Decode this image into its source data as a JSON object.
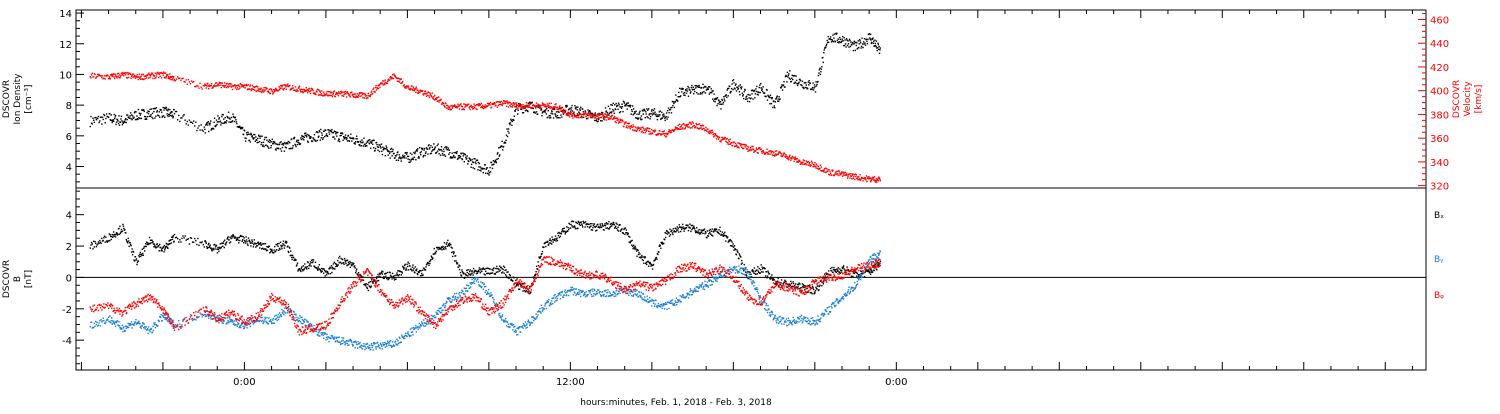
{
  "chart_data": [
    {
      "type": "scatter",
      "panel": "top",
      "xlabel": "hours:minutes, Feb.  1, 2018 - Feb.  3, 2018",
      "x_ticks": [
        "0:00",
        "12:00",
        "0:00"
      ],
      "ylabel_left": [
        "DSCOVR",
        "Ion Density",
        "[cm⁻³]"
      ],
      "ylabel_right": [
        "DSCOVR",
        "Velocity",
        "[km/s]"
      ],
      "ylim_left": [
        2.6,
        14.2
      ],
      "ylim_right": [
        318,
        468
      ],
      "yticks_left": [
        "4",
        "6",
        "8",
        "10",
        "12",
        "14"
      ],
      "yticks_right": [
        "320",
        "340",
        "360",
        "380",
        "400",
        "420",
        "440",
        "460"
      ],
      "colors": {
        "density": "#000000",
        "velocity": "#ff0000"
      },
      "series": [
        {
          "axis": "left",
          "color": "#000000",
          "x_hours": [
            -5.7,
            -5,
            -4.5,
            -4,
            -3.5,
            -3,
            -2.6,
            -1.5,
            -1,
            -0.5,
            0,
            0.5,
            1,
            1.5,
            2,
            2.5,
            3,
            3.5,
            4,
            4.5,
            5,
            5.5,
            6,
            6.5,
            7,
            7.5,
            8,
            8.5,
            9,
            9.5,
            10,
            10.5,
            11,
            11.5,
            12,
            12.5,
            13,
            13.5,
            14,
            14.5,
            15,
            15.5,
            16,
            16.5,
            17,
            17.5,
            18,
            18.5,
            19,
            19.5,
            20,
            20.5,
            21,
            21.5,
            22,
            22.5,
            23,
            23.4
          ],
          "y": [
            7.0,
            7.2,
            7.0,
            7.4,
            7.5,
            7.6,
            7.4,
            6.5,
            7.0,
            7.3,
            6.0,
            5.8,
            5.5,
            5.3,
            5.8,
            6.0,
            6.2,
            6.0,
            5.8,
            5.6,
            5.2,
            4.8,
            4.6,
            5.0,
            5.2,
            5.0,
            4.6,
            4.2,
            3.8,
            5.5,
            7.8,
            8.0,
            7.6,
            7.5,
            7.8,
            7.5,
            7.2,
            7.8,
            8.0,
            7.4,
            7.5,
            7.3,
            8.8,
            9.0,
            9.2,
            8.0,
            9.5,
            8.5,
            9.2,
            8.0,
            10.0,
            9.5,
            9.2,
            12.5,
            12.3,
            11.8,
            12.5,
            11.5
          ]
        },
        {
          "axis": "right",
          "color": "#ff0000",
          "x_hours": [
            -5.7,
            -5,
            -4.5,
            -4,
            -3.5,
            -3,
            -2.6,
            -1.5,
            -1,
            -0.5,
            0,
            0.5,
            1,
            1.5,
            2,
            2.5,
            3,
            3.5,
            4,
            4.5,
            5,
            5.5,
            6,
            6.5,
            7,
            7.5,
            8,
            8.5,
            9,
            9.5,
            10,
            10.5,
            11,
            11.5,
            12,
            12.5,
            13,
            13.5,
            14,
            14.5,
            15,
            15.5,
            16,
            16.5,
            17,
            17.5,
            18,
            18.5,
            19,
            19.5,
            20,
            20.5,
            21,
            21.5,
            22,
            22.5,
            23,
            23.4
          ],
          "y": [
            413,
            412,
            414,
            412,
            413,
            414,
            411,
            404,
            406,
            404,
            404,
            402,
            400,
            404,
            402,
            400,
            398,
            398,
            397,
            396,
            406,
            413,
            403,
            400,
            395,
            386,
            387,
            387,
            388,
            390,
            388,
            388,
            388,
            387,
            380,
            380,
            379,
            378,
            372,
            368,
            366,
            364,
            370,
            372,
            368,
            360,
            356,
            352,
            350,
            348,
            345,
            340,
            338,
            332,
            330,
            328,
            326,
            326
          ]
        }
      ]
    },
    {
      "type": "scatter",
      "panel": "bottom",
      "ylabel_left": [
        "DSCOVR",
        "B",
        "[nT]"
      ],
      "ylim": [
        -5.9,
        5.7
      ],
      "yticks": [
        "-4",
        "-2",
        "0",
        "2",
        "4"
      ],
      "legend": [
        {
          "name": "Bₓ",
          "color": "#000000"
        },
        {
          "name": "Bᵧ",
          "color": "#1a7fd8"
        },
        {
          "name": "Bᵩ",
          "color": "#ff0000"
        }
      ],
      "series": [
        {
          "name": "Bₓ",
          "color": "#000000",
          "x_hours": [
            -5.7,
            -5,
            -4.5,
            -4,
            -3.5,
            -3,
            -2.6,
            -1.5,
            -1,
            -0.5,
            0,
            0.5,
            1,
            1.5,
            2,
            2.5,
            3,
            3.5,
            4,
            4.5,
            5,
            5.5,
            6,
            6.5,
            7,
            7.5,
            8,
            8.5,
            9,
            9.5,
            10,
            10.5,
            11,
            11.5,
            12,
            12.5,
            13,
            13.5,
            14,
            14.5,
            15,
            15.5,
            16,
            16.5,
            17,
            17.5,
            18,
            18.5,
            19,
            19.5,
            20,
            20.5,
            21,
            21.5,
            22,
            22.5,
            23,
            23.4
          ],
          "y": [
            2.0,
            2.6,
            3.2,
            1.0,
            2.4,
            1.8,
            2.6,
            2.2,
            1.8,
            2.6,
            2.4,
            2.1,
            1.8,
            2.2,
            0.5,
            1.0,
            0.2,
            1.2,
            0.8,
            -0.6,
            0.2,
            0.1,
            0.8,
            0.2,
            1.8,
            2.2,
            0.2,
            0.4,
            0.4,
            0.6,
            -0.4,
            -0.8,
            2.2,
            2.6,
            3.4,
            3.4,
            3.2,
            3.4,
            3.0,
            1.4,
            0.8,
            2.8,
            3.2,
            3.2,
            2.8,
            3.0,
            2.0,
            0.2,
            0.6,
            -0.2,
            -0.4,
            -0.6,
            -0.8,
            0.4,
            0.6,
            0.2,
            0.4,
            1.0
          ]
        },
        {
          "name": "Bᵧ",
          "color": "#1a7fd8",
          "x_hours": [
            -5.7,
            -5,
            -4.5,
            -4,
            -3.5,
            -3,
            -2.6,
            -1.5,
            -1,
            -0.5,
            0,
            0.5,
            1,
            1.5,
            2,
            2.5,
            3,
            3.5,
            4,
            4.5,
            5,
            5.5,
            6,
            6.5,
            7,
            7.5,
            8,
            8.5,
            9,
            9.5,
            10,
            10.5,
            11,
            11.5,
            12,
            12.5,
            13,
            13.5,
            14,
            14.5,
            15,
            15.5,
            16,
            16.5,
            17,
            17.5,
            18,
            18.5,
            19,
            19.5,
            20,
            20.5,
            21,
            21.5,
            22,
            22.5,
            23,
            23.4
          ],
          "y": [
            -3.0,
            -2.6,
            -3.2,
            -2.8,
            -3.4,
            -2.4,
            -3.0,
            -2.2,
            -2.6,
            -2.8,
            -3.0,
            -2.6,
            -2.8,
            -2.0,
            -2.6,
            -3.2,
            -3.8,
            -4.0,
            -4.2,
            -4.4,
            -4.3,
            -4.2,
            -3.6,
            -3.0,
            -2.4,
            -1.4,
            -1.0,
            0.0,
            -1.0,
            -2.6,
            -3.4,
            -2.8,
            -1.8,
            -1.2,
            -0.8,
            -1.0,
            -0.9,
            -1.0,
            -0.8,
            -1.0,
            -1.6,
            -1.8,
            -1.4,
            -0.8,
            -0.4,
            0.2,
            0.6,
            0.4,
            -1.4,
            -2.6,
            -2.8,
            -2.6,
            -2.8,
            -2.0,
            -1.2,
            -0.4,
            1.2,
            1.6
          ]
        },
        {
          "name": "Bᵩ",
          "color": "#ff0000",
          "x_hours": [
            -5.7,
            -5,
            -4.5,
            -4,
            -3.5,
            -3,
            -2.6,
            -1.5,
            -1,
            -0.5,
            0,
            0.5,
            1,
            1.5,
            2,
            2.5,
            3,
            3.5,
            4,
            4.5,
            5,
            5.5,
            6,
            6.5,
            7,
            7.5,
            8,
            8.5,
            9,
            9.5,
            10,
            10.5,
            11,
            11.5,
            12,
            12.5,
            13,
            13.5,
            14,
            14.5,
            15,
            15.5,
            16,
            16.5,
            17,
            17.5,
            18,
            18.5,
            19,
            19.5,
            20,
            20.5,
            21,
            21.5,
            22,
            22.5,
            23,
            23.4
          ],
          "y": [
            -2.0,
            -1.8,
            -2.2,
            -1.6,
            -1.2,
            -2.0,
            -3.2,
            -2.0,
            -2.6,
            -2.2,
            -2.8,
            -2.4,
            -1.2,
            -1.6,
            -3.4,
            -3.2,
            -3.0,
            -1.6,
            -0.4,
            0.4,
            -0.8,
            -1.8,
            -1.2,
            -2.2,
            -3.0,
            -2.0,
            -1.4,
            -1.2,
            -2.2,
            -1.6,
            -0.2,
            -0.8,
            1.2,
            1.0,
            0.6,
            0.2,
            0.2,
            -0.2,
            -0.8,
            -0.4,
            -0.6,
            -0.2,
            0.6,
            0.8,
            0.2,
            0.6,
            0.0,
            -1.2,
            -1.6,
            -0.4,
            -0.6,
            -1.0,
            -0.2,
            0.0,
            0.2,
            0.6,
            0.8,
            1.0
          ]
        }
      ]
    }
  ]
}
